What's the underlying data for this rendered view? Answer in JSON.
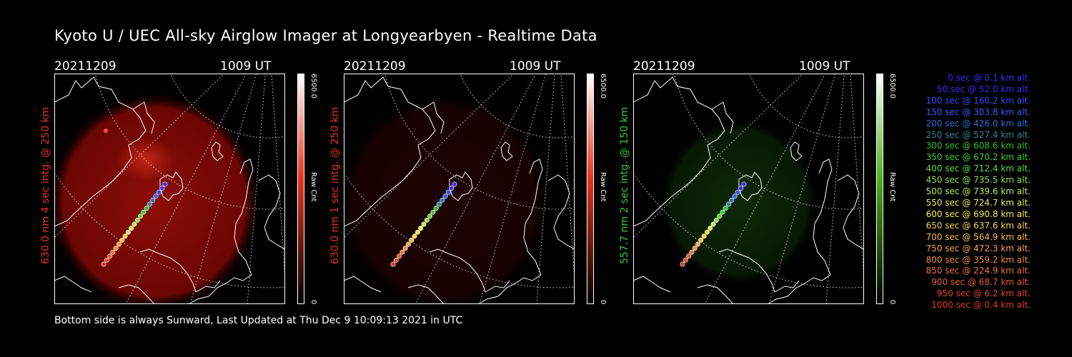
{
  "title": "Kyoto U / UEC All-sky Airglow Imager at Longyearbyen - Realtime Data",
  "footer": "Bottom side is always Sunward, Last Updated at Thu Dec  9 10:09:13 2021 in UTC",
  "panels": [
    {
      "date": "20211209",
      "time": "1009 UT",
      "side_label": "630.0 nm  4 sec intg. @ 250 km",
      "label_color": "#e8341c",
      "cb_max": "6500.0",
      "cb_min": "0",
      "cb_unit": "Raw Cnt",
      "cb_color": "#e8341c",
      "glow": "red",
      "glow_intensity": 0.7
    },
    {
      "date": "20211209",
      "time": "1009 UT",
      "side_label": "630.0 nm  1 sec intg. @ 250 km",
      "label_color": "#e8341c",
      "cb_max": "6500.0",
      "cb_min": "0",
      "cb_unit": "Raw Cnt",
      "cb_color": "#e8341c",
      "glow": "red",
      "glow_intensity": 0.15
    },
    {
      "date": "20211209",
      "time": "1009 UT",
      "side_label": "557.7 nm  2 sec intg. @ 150 km",
      "label_color": "#33cc33",
      "cb_max": "6500.0",
      "cb_min": "0",
      "cb_unit": "Raw Cnt",
      "cb_color": "#4caf1a",
      "glow": "green",
      "glow_intensity": 0.35
    }
  ],
  "legend": [
    {
      "text": "0 sec @    0.1 km alt.",
      "color": "#3a2cff"
    },
    {
      "text": "50 sec @   52.0 km alt.",
      "color": "#3a2cff"
    },
    {
      "text": "100 sec @ 160.2 km alt.",
      "color": "#2f4cff"
    },
    {
      "text": "150 sec @ 303.8 km alt.",
      "color": "#2f5cff"
    },
    {
      "text": "200 sec @ 426.0 km alt.",
      "color": "#2e6fd8"
    },
    {
      "text": "250 sec @ 527.4 km alt.",
      "color": "#2a8a9a"
    },
    {
      "text": "300 sec @ 608.6 km alt.",
      "color": "#2ec22e"
    },
    {
      "text": "350 sec @ 670.2 km alt.",
      "color": "#3ad23a"
    },
    {
      "text": "400 sec @ 712.4 km alt.",
      "color": "#5fdc3a"
    },
    {
      "text": "450 sec @ 735.5 km alt.",
      "color": "#8ee04a"
    },
    {
      "text": "500 sec @ 739.6 km alt.",
      "color": "#c0e85a"
    },
    {
      "text": "550 sec @ 724.7 km alt.",
      "color": "#e6ee5a"
    },
    {
      "text": "600 sec @ 690.8 km alt.",
      "color": "#f4e84a"
    },
    {
      "text": "650 sec @ 637.6 km alt.",
      "color": "#f6d448"
    },
    {
      "text": "700 sec @ 564.9 km alt.",
      "color": "#f6bc44"
    },
    {
      "text": "750 sec @ 472.3 km alt.",
      "color": "#f4a440"
    },
    {
      "text": "800 sec @ 359.2 km alt.",
      "color": "#f08c3a"
    },
    {
      "text": "850 sec @ 224.9 km alt.",
      "color": "#ec7434"
    },
    {
      "text": "900 sec @   68.7 km alt.",
      "color": "#e85e30"
    },
    {
      "text": "950 sec @    6.2 km alt.",
      "color": "#e44a2c"
    },
    {
      "text": "1000 sec @    0.4 km alt.",
      "color": "#e03828"
    }
  ]
}
